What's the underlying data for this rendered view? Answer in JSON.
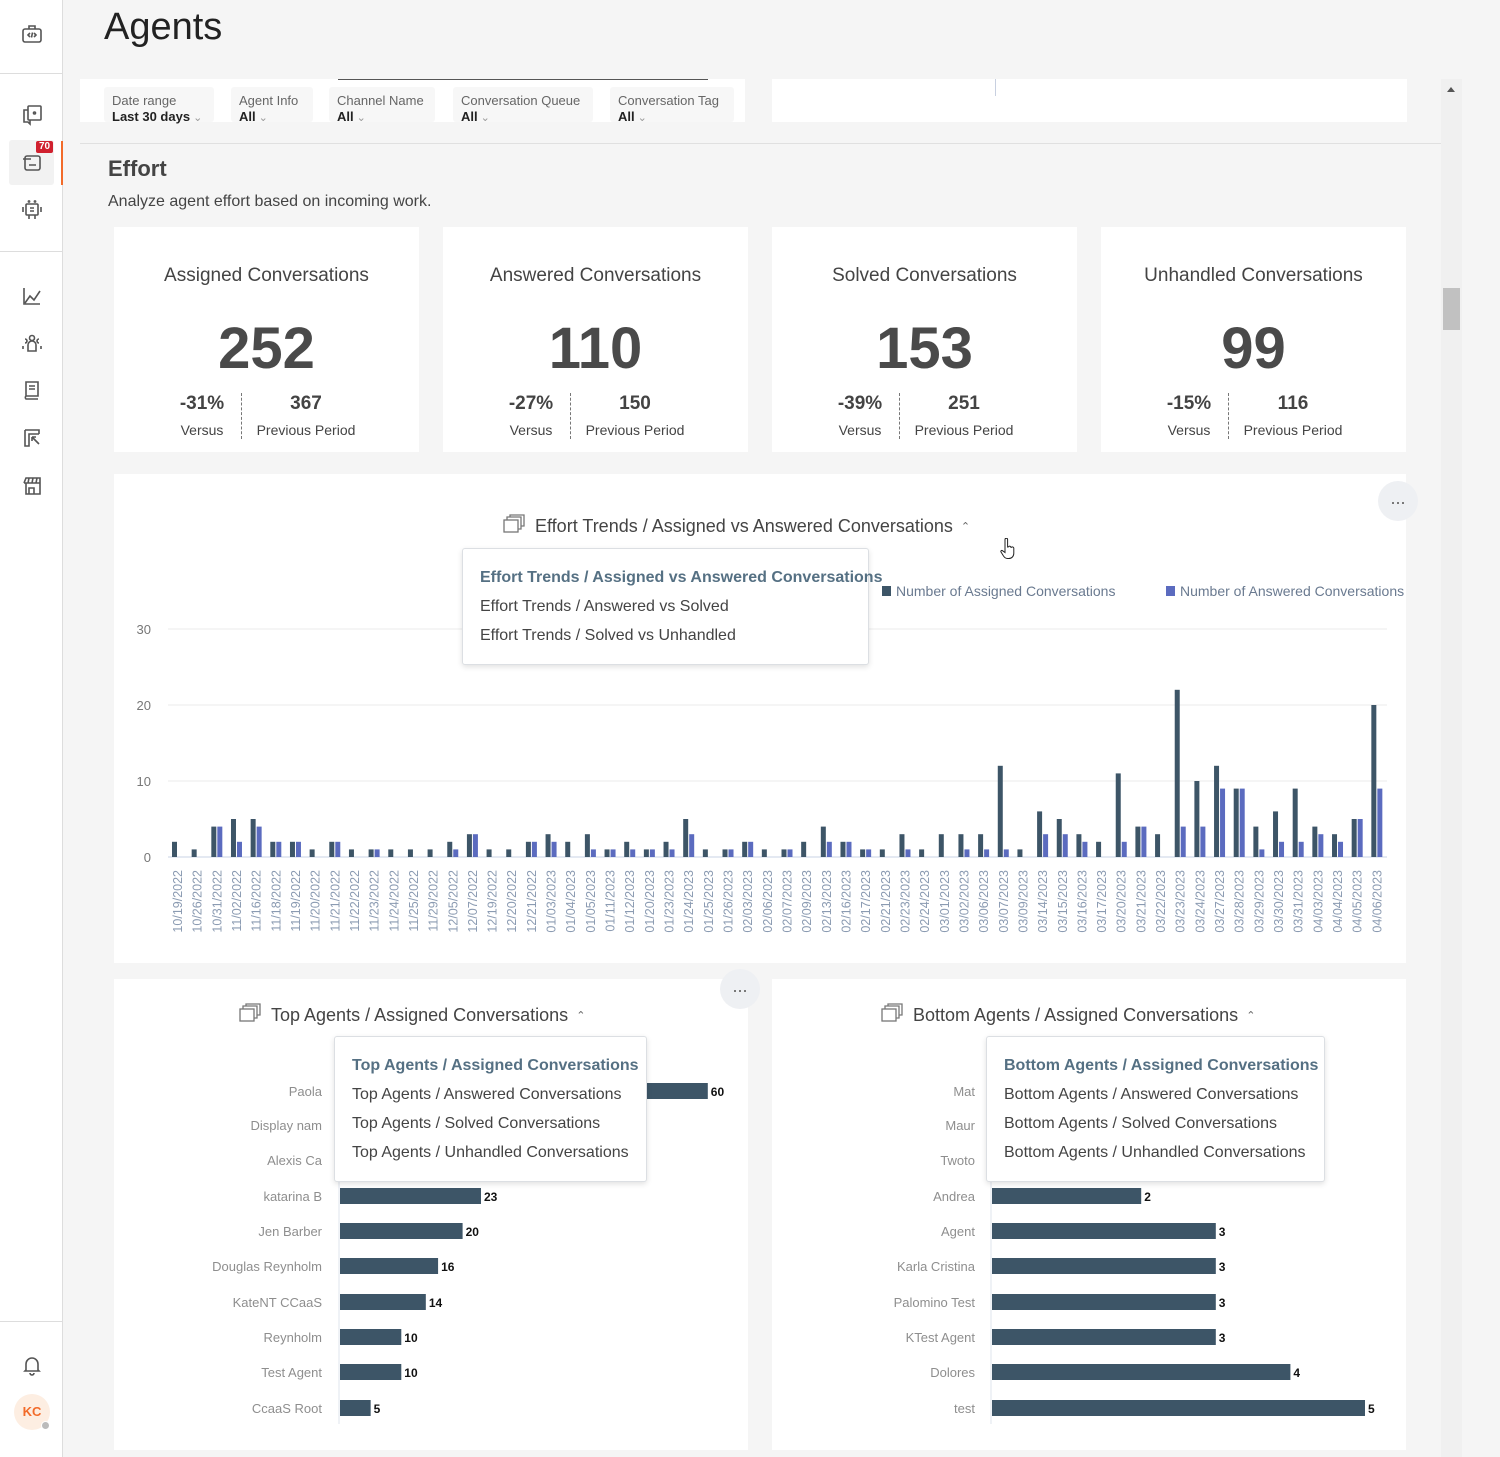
{
  "page": {
    "title": "Agents"
  },
  "sidebar": {
    "badge": "70",
    "avatar": "KC",
    "icons": [
      "code-bag-icon",
      "conversations-icon",
      "inbox-icon",
      "bot-icon",
      "analytics-icon",
      "team-icon",
      "knowledge-icon",
      "reports-icon",
      "store-icon",
      "bell-icon"
    ]
  },
  "filters": [
    {
      "label": "Date range",
      "value": "Last 30 days"
    },
    {
      "label": "Agent Info",
      "value": "All"
    },
    {
      "label": "Channel Name",
      "value": "All"
    },
    {
      "label": "Conversation Queue",
      "value": "All"
    },
    {
      "label": "Conversation Tag",
      "value": "All"
    }
  ],
  "section": {
    "title": "Effort",
    "subtitle": "Analyze agent effort based on incoming work."
  },
  "kpis": [
    {
      "title": "Assigned Conversations",
      "value": "252",
      "change": "-31%",
      "change_label": "Versus",
      "previous": "367",
      "previous_label": "Previous Period"
    },
    {
      "title": "Answered Conversations",
      "value": "110",
      "change": "-27%",
      "change_label": "Versus",
      "previous": "150",
      "previous_label": "Previous Period"
    },
    {
      "title": "Solved Conversations",
      "value": "153",
      "change": "-39%",
      "change_label": "Versus",
      "previous": "251",
      "previous_label": "Previous Period"
    },
    {
      "title": "Unhandled Conversations",
      "value": "99",
      "change": "-15%",
      "change_label": "Versus",
      "previous": "116",
      "previous_label": "Previous Period"
    }
  ],
  "more_label": "...",
  "trend": {
    "title": "Effort Trends / Assigned vs Answered Conversations",
    "menu": [
      "Effort Trends / Assigned vs Answered Conversations",
      "Effort Trends / Answered vs Solved",
      "Effort Trends / Solved vs Unhandled"
    ]
  },
  "top": {
    "title": "Top Agents / Assigned Conversations",
    "menu": [
      "Top Agents / Assigned Conversations",
      "Top Agents / Answered Conversations",
      "Top Agents / Solved Conversations",
      "Top Agents / Unhandled Conversations"
    ]
  },
  "bottom": {
    "title": "Bottom Agents / Assigned Conversations",
    "menu": [
      "Bottom Agents / Assigned Conversations",
      "Bottom Agents / Answered Conversations",
      "Bottom Agents / Solved Conversations",
      "Bottom Agents / Unhandled Conversations"
    ]
  },
  "colors": {
    "assigned": "#3d5567",
    "answered": "#5b6bbf",
    "accent": "#f26b2a",
    "badge": "#d0202e"
  },
  "chart_data": [
    {
      "type": "bar",
      "ylim": [
        0,
        30
      ],
      "yticks": [
        0,
        10,
        20,
        30
      ],
      "grid": true,
      "legend": "top-right",
      "categories": [
        "10/19/2022",
        "10/26/2022",
        "10/31/2022",
        "11/02/2022",
        "11/16/2022",
        "11/18/2022",
        "11/19/2022",
        "11/20/2022",
        "11/21/2022",
        "11/22/2022",
        "11/23/2022",
        "11/24/2022",
        "11/25/2022",
        "11/29/2022",
        "12/05/2022",
        "12/07/2022",
        "12/19/2022",
        "12/20/2022",
        "12/21/2022",
        "01/03/2023",
        "01/04/2023",
        "01/05/2023",
        "01/11/2023",
        "01/12/2023",
        "01/20/2023",
        "01/23/2023",
        "01/24/2023",
        "01/25/2023",
        "01/26/2023",
        "02/03/2023",
        "02/06/2023",
        "02/07/2023",
        "02/09/2023",
        "02/13/2023",
        "02/16/2023",
        "02/17/2023",
        "02/21/2023",
        "02/23/2023",
        "02/24/2023",
        "03/01/2023",
        "03/02/2023",
        "03/06/2023",
        "03/07/2023",
        "03/09/2023",
        "03/14/2023",
        "03/15/2023",
        "03/16/2023",
        "03/17/2023",
        "03/20/2023",
        "03/21/2023",
        "03/22/2023",
        "03/23/2023",
        "03/24/2023",
        "03/27/2023",
        "03/28/2023",
        "03/29/2023",
        "03/30/2023",
        "03/31/2023",
        "04/03/2023",
        "04/04/2023",
        "04/05/2023",
        "04/06/2023"
      ],
      "series": [
        {
          "name": "Number of Assigned Conversations",
          "values": [
            2,
            1,
            4,
            5,
            5,
            2,
            2,
            1,
            2,
            1,
            1,
            1,
            1,
            1,
            2,
            3,
            1,
            1,
            2,
            3,
            2,
            3,
            1,
            2,
            1,
            2,
            5,
            1,
            1,
            2,
            1,
            1,
            2,
            4,
            2,
            1,
            1,
            3,
            1,
            3,
            3,
            3,
            12,
            1,
            6,
            5,
            3,
            2,
            11,
            4,
            3,
            22,
            10,
            12,
            9,
            4,
            6,
            9,
            4,
            3,
            5,
            20
          ]
        },
        {
          "name": "Number of Answered Conversations",
          "values": [
            0,
            0,
            4,
            2,
            4,
            2,
            2,
            0,
            2,
            0,
            1,
            0,
            0,
            0,
            1,
            3,
            0,
            0,
            2,
            2,
            0,
            1,
            1,
            1,
            1,
            1,
            3,
            0,
            1,
            2,
            0,
            1,
            0,
            2,
            2,
            1,
            0,
            1,
            0,
            0,
            1,
            1,
            1,
            0,
            3,
            3,
            2,
            0,
            2,
            4,
            0,
            4,
            4,
            9,
            9,
            1,
            2,
            2,
            3,
            2,
            5,
            9
          ]
        }
      ]
    },
    {
      "type": "bar",
      "orientation": "horizontal",
      "categories": [
        "Paola",
        "Display nam",
        "Alexis Ca",
        "katarina B",
        "Jen Barber",
        "Douglas Reynholm",
        "KateNT CCaaS",
        "Reynholm",
        "Test Agent",
        "CcaaS Root"
      ],
      "values": [
        60,
        null,
        null,
        23,
        20,
        16,
        14,
        10,
        10,
        5
      ]
    },
    {
      "type": "bar",
      "orientation": "horizontal",
      "categories": [
        "Mat",
        "Maur",
        "Twoto",
        "Andrea",
        "Agent",
        "Karla Cristina",
        "Palomino Test",
        "KTest Agent",
        "Dolores",
        "test"
      ],
      "values": [
        null,
        null,
        null,
        2,
        3,
        3,
        3,
        3,
        4,
        5
      ]
    }
  ]
}
